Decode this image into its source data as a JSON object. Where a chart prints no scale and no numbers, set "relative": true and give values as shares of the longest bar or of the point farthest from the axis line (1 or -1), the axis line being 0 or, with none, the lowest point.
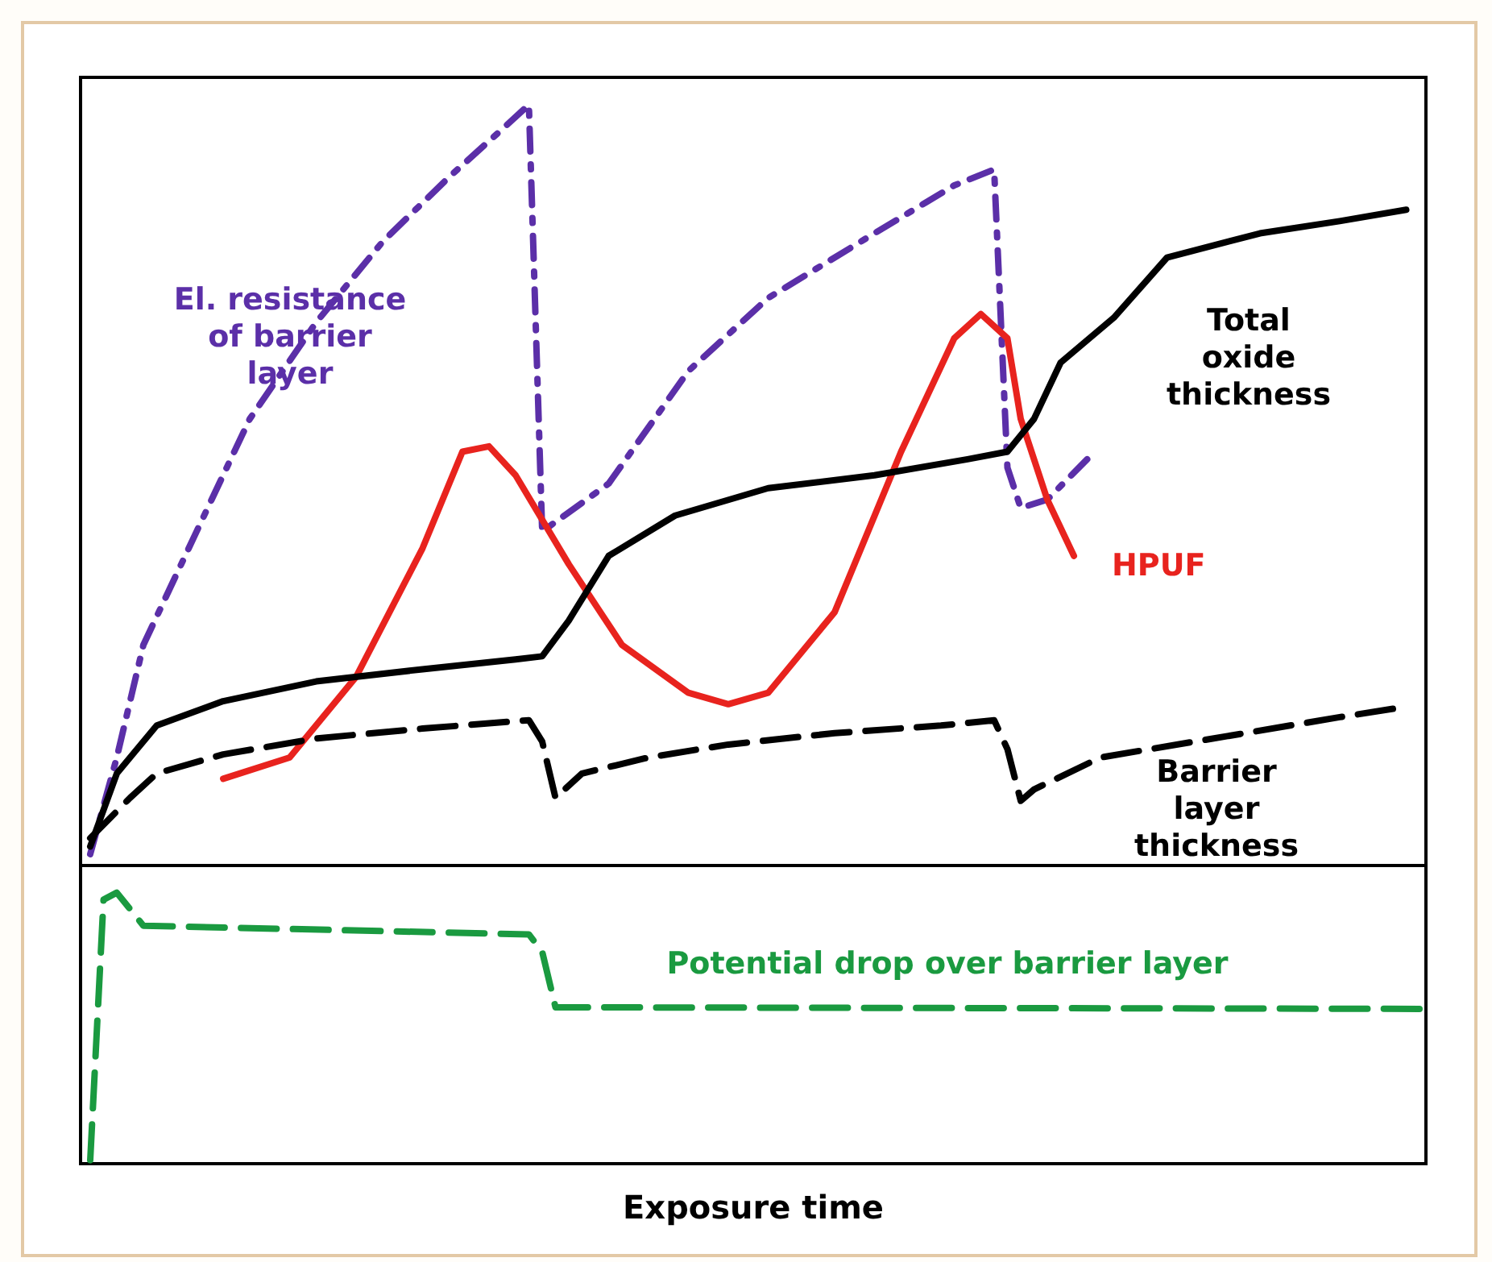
{
  "chart_data": [
    {
      "type": "line",
      "relative": true,
      "tick_labels": false,
      "legend": false,
      "marker": "none",
      "categories": [
        null,
        null,
        null,
        null,
        null,
        null,
        null,
        null,
        null,
        null,
        null,
        null,
        null,
        null,
        null,
        null,
        null,
        null,
        null,
        null,
        null,
        null,
        null,
        null,
        null,
        null,
        null,
        null,
        null,
        null,
        null,
        null,
        null,
        null,
        null,
        null,
        null,
        null,
        null,
        null,
        null,
        null,
        null,
        null,
        null,
        null,
        null,
        null,
        null,
        null,
        null,
        null,
        null,
        null,
        null,
        null,
        null,
        null,
        null,
        null,
        null,
        null,
        null,
        null,
        null,
        null,
        null,
        null,
        null,
        null,
        null,
        null,
        null,
        null,
        null,
        null,
        null,
        null,
        null,
        null,
        null,
        null,
        null,
        null,
        null,
        null,
        null,
        null,
        null,
        null,
        null,
        null,
        null,
        null,
        null,
        null,
        null,
        null,
        null,
        null,
        null
      ],
      "series": [
        {
          "name": "El. resistance of barrier layer",
          "color": "#5b2fa8",
          "line_style": "dashdot",
          "values": [
            0.015,
            null,
            0.142,
            null,
            0.29,
            null,
            null,
            null,
            0.439,
            null,
            null,
            null,
            0.587,
            null,
            null,
            null,
            null,
            0.714,
            null,
            null,
            null,
            null,
            0.82,
            null,
            null,
            null,
            null,
            0.905,
            null,
            null,
            null,
            0.968,
            null,
            1,
            0.439,
            null,
            null,
            null,
            null,
            0.502,
            null,
            null,
            null,
            null,
            null,
            0.65,
            null,
            null,
            null,
            null,
            null,
            0.746,
            null,
            null,
            null,
            null,
            null,
            null,
            null,
            0.831,
            null,
            null,
            null,
            null,
            null,
            0.894,
            null,
            null,
            0.915,
            0.523,
            0.47,
            null,
            0.481,
            null,
            null,
            0.534,
            null,
            null,
            null,
            null,
            null,
            null,
            null,
            null,
            null,
            null,
            null,
            null,
            null,
            null,
            null,
            null,
            null,
            null,
            null,
            null,
            null,
            null,
            null,
            null,
            null
          ]
        },
        {
          "name": "HPUF",
          "color": "#e8231e",
          "line_style": "solid",
          "values": [
            null,
            null,
            null,
            null,
            null,
            null,
            null,
            null,
            null,
            null,
            0.114,
            null,
            null,
            null,
            null,
            0.142,
            null,
            null,
            null,
            null,
            0.248,
            null,
            null,
            null,
            null,
            0.417,
            null,
            null,
            0.544,
            null,
            0.551,
            null,
            0.513,
            null,
            null,
            null,
            0.396,
            null,
            null,
            null,
            0.29,
            null,
            null,
            null,
            null,
            0.227,
            null,
            null,
            0.212,
            null,
            null,
            0.227,
            null,
            null,
            null,
            null,
            0.333,
            null,
            null,
            null,
            null,
            0.544,
            null,
            null,
            null,
            0.693,
            null,
            0.725,
            null,
            0.693,
            0.587,
            null,
            0.481,
            null,
            0.407,
            null,
            null,
            null,
            null,
            null,
            null,
            null,
            null,
            null,
            null,
            null,
            null,
            null,
            null,
            null,
            null,
            null,
            null,
            null,
            null,
            null,
            null,
            null,
            null,
            null,
            null
          ]
        },
        {
          "name": "Total oxide thickness",
          "color": "#000000",
          "line_style": "solid",
          "values": [
            0.025,
            null,
            0.121,
            null,
            null,
            0.184,
            null,
            null,
            null,
            null,
            0.216,
            null,
            null,
            null,
            null,
            null,
            null,
            0.242,
            null,
            null,
            null,
            null,
            null,
            null,
            null,
            0.258,
            null,
            null,
            null,
            null,
            null,
            null,
            0.271,
            null,
            0.275,
            null,
            0.322,
            null,
            null,
            0.407,
            null,
            null,
            null,
            null,
            0.46,
            null,
            null,
            null,
            null,
            null,
            null,
            0.496,
            null,
            null,
            null,
            null,
            null,
            null,
            null,
            0.513,
            null,
            null,
            null,
            null,
            null,
            null,
            0.534,
            null,
            null,
            0.544,
            null,
            0.587,
            null,
            0.661,
            null,
            null,
            null,
            0.72,
            null,
            null,
            null,
            0.799,
            null,
            null,
            null,
            null,
            null,
            null,
            0.831,
            null,
            null,
            null,
            null,
            null,
            0.847,
            null,
            null,
            null,
            null,
            0.862,
            null
          ]
        },
        {
          "name": "Barrier layer thickness",
          "color": "#000000",
          "line_style": "dashed",
          "values": [
            0.036,
            null,
            null,
            0.089,
            null,
            0.121,
            null,
            null,
            null,
            null,
            0.146,
            null,
            null,
            null,
            null,
            null,
            null,
            0.167,
            null,
            null,
            null,
            null,
            null,
            null,
            null,
            0.18,
            null,
            null,
            null,
            null,
            null,
            null,
            null,
            0.191,
            0.163,
            0.089,
            null,
            0.121,
            null,
            null,
            null,
            null,
            0.142,
            null,
            null,
            null,
            null,
            null,
            0.159,
            null,
            null,
            null,
            null,
            null,
            null,
            null,
            0.174,
            null,
            null,
            null,
            null,
            null,
            null,
            null,
            0.184,
            null,
            null,
            null,
            0.191,
            0.153,
            0.085,
            0.1,
            null,
            null,
            null,
            null,
            0.142,
            null,
            null,
            null,
            null,
            null,
            null,
            null,
            null,
            null,
            null,
            null,
            null,
            null,
            null,
            null,
            null,
            null,
            0.195,
            null,
            null,
            null,
            0.206,
            null,
            null
          ]
        }
      ]
    },
    {
      "type": "line",
      "relative": true,
      "tick_labels": false,
      "legend": false,
      "marker": "none",
      "xlabel": "Exposure time",
      "categories": [
        null,
        null,
        null,
        null,
        null,
        null,
        null,
        null,
        null,
        null,
        null,
        null,
        null,
        null,
        null,
        null,
        null,
        null,
        null,
        null,
        null,
        null,
        null,
        null,
        null,
        null,
        null,
        null,
        null,
        null,
        null,
        null,
        null,
        null,
        null,
        null,
        null,
        null,
        null,
        null,
        null,
        null,
        null,
        null,
        null,
        null,
        null,
        null,
        null,
        null,
        null,
        null,
        null,
        null,
        null,
        null,
        null,
        null,
        null,
        null,
        null,
        null,
        null,
        null,
        null,
        null,
        null,
        null,
        null,
        null,
        null,
        null,
        null,
        null,
        null,
        null,
        null,
        null,
        null,
        null,
        null,
        null,
        null,
        null,
        null,
        null,
        null,
        null,
        null,
        null,
        null,
        null,
        null,
        null,
        null,
        null,
        null,
        null,
        null,
        null,
        null
      ],
      "series": [
        {
          "name": "Potential drop over barrier layer",
          "color": "#1a9a40",
          "line_style": "dashed",
          "values": [
            0.013,
            0.974,
            1,
            null,
            0.878,
            null,
            null,
            null,
            null,
            null,
            null,
            null,
            null,
            null,
            null,
            null,
            null,
            null,
            null,
            null,
            null,
            null,
            null,
            null,
            null,
            null,
            null,
            null,
            null,
            null,
            null,
            null,
            null,
            0.846,
            0.782,
            0.577,
            null,
            null,
            null,
            null,
            null,
            null,
            null,
            null,
            null,
            null,
            null,
            null,
            null,
            null,
            null,
            null,
            null,
            null,
            null,
            null,
            null,
            null,
            null,
            null,
            null,
            null,
            null,
            null,
            null,
            null,
            null,
            null,
            null,
            null,
            null,
            null,
            null,
            null,
            null,
            null,
            null,
            null,
            null,
            null,
            null,
            null,
            null,
            null,
            null,
            null,
            null,
            null,
            null,
            null,
            null,
            null,
            null,
            null,
            null,
            null,
            null,
            null,
            null,
            null,
            0.571
          ]
        }
      ]
    }
  ]
}
